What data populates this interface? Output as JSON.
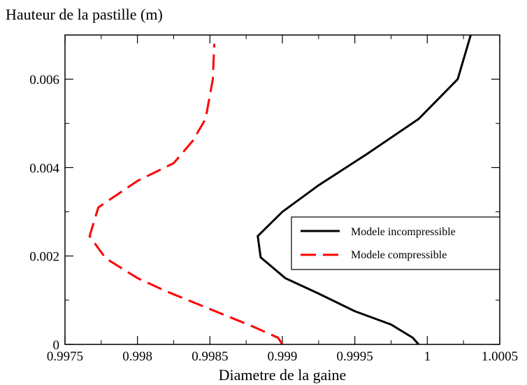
{
  "chart_data": {
    "type": "line",
    "title": "",
    "xlabel": "Diametre de la gaine",
    "ylabel": "Hauteur de la pastille (m)",
    "xlim": [
      0.9975,
      1.0005
    ],
    "ylim": [
      0,
      0.007
    ],
    "x_ticks": [
      0.9975,
      0.998,
      0.9985,
      0.999,
      0.9995,
      1,
      1.0005
    ],
    "x_tick_labels": [
      "0.9975",
      "0.998",
      "0.9985",
      "0.999",
      "0.9995",
      "1",
      "1.0005"
    ],
    "y_ticks": [
      0,
      0.002,
      0.004,
      0.006
    ],
    "y_tick_labels": [
      "0",
      "0.002",
      "0.004",
      "0.006"
    ],
    "grid": false,
    "legend_position": "right-middle",
    "series": [
      {
        "name": "Modele incompressible",
        "color": "#000000",
        "dash": "solid",
        "points": [
          [
            0.99994,
            0.0
          ],
          [
            0.9999,
            0.00015
          ],
          [
            0.99975,
            0.00045
          ],
          [
            0.9995,
            0.00075
          ],
          [
            0.99925,
            0.00115
          ],
          [
            0.99902,
            0.0015
          ],
          [
            0.99885,
            0.00197
          ],
          [
            0.99883,
            0.00245
          ],
          [
            0.999,
            0.003
          ],
          [
            0.99925,
            0.0036
          ],
          [
            0.99958,
            0.0043
          ],
          [
            0.99994,
            0.0051
          ],
          [
            1.00021,
            0.006
          ],
          [
            1.0003,
            0.007
          ]
        ]
      },
      {
        "name": "Modele compressible",
        "color": "#ff0000",
        "dash": "dashed",
        "points": [
          [
            0.999,
            0.0
          ],
          [
            0.99897,
            0.00015
          ],
          [
            0.9988,
            0.0004
          ],
          [
            0.9985,
            0.0008
          ],
          [
            0.9982,
            0.0012
          ],
          [
            0.998,
            0.0015
          ],
          [
            0.99778,
            0.00195
          ],
          [
            0.99767,
            0.00245
          ],
          [
            0.99773,
            0.0031
          ],
          [
            0.998,
            0.0037
          ],
          [
            0.99825,
            0.0041
          ],
          [
            0.99838,
            0.0046
          ],
          [
            0.99847,
            0.0051
          ],
          [
            0.99852,
            0.006
          ],
          [
            0.99853,
            0.0068
          ]
        ]
      }
    ]
  }
}
